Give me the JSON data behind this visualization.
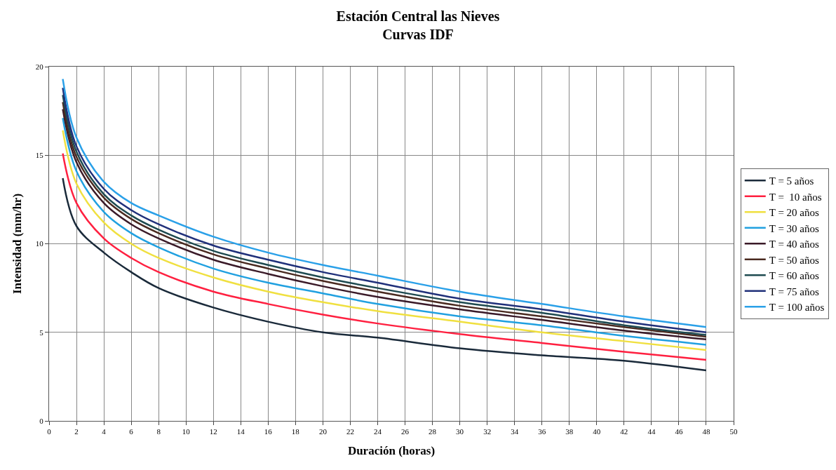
{
  "chart_data": {
    "type": "line",
    "title": "Estación Central las Nieves\nCurvas IDF",
    "xlabel": "Duración (horas)",
    "ylabel": "Intensidad (mm/hr)",
    "x": [
      1,
      2,
      4,
      6,
      8,
      12,
      16,
      20,
      24,
      30,
      36,
      42,
      48
    ],
    "xlim": [
      0,
      50
    ],
    "xticks": [
      0,
      2,
      4,
      6,
      8,
      10,
      12,
      14,
      16,
      18,
      20,
      22,
      24,
      26,
      28,
      30,
      32,
      34,
      36,
      38,
      40,
      42,
      44,
      46,
      48,
      50
    ],
    "ylim": [
      0,
      20
    ],
    "yticks": [
      0,
      5,
      10,
      15,
      20
    ],
    "grid": true,
    "legend": "right",
    "marker": "none",
    "line_style": "solid",
    "series": [
      {
        "name": "T = 5 años",
        "color": "#1a2a3a",
        "values": [
          13.7,
          11.0,
          9.5,
          8.4,
          7.5,
          6.4,
          5.6,
          5.0,
          4.7,
          4.1,
          3.7,
          3.4,
          2.85
        ]
      },
      {
        "name": "T =  10 años",
        "color": "#ff2040",
        "values": [
          15.1,
          12.3,
          10.3,
          9.2,
          8.4,
          7.3,
          6.6,
          6.0,
          5.5,
          4.9,
          4.4,
          3.9,
          3.45
        ]
      },
      {
        "name": "T = 20 años",
        "color": "#f0e040",
        "values": [
          16.4,
          13.4,
          11.2,
          10.0,
          9.2,
          8.1,
          7.3,
          6.7,
          6.2,
          5.6,
          5.0,
          4.5,
          4.0
        ]
      },
      {
        "name": "T = 30 años",
        "color": "#20a0e0",
        "values": [
          17.1,
          14.1,
          11.8,
          10.6,
          9.8,
          8.6,
          7.8,
          7.2,
          6.6,
          5.9,
          5.4,
          4.8,
          4.3
        ]
      },
      {
        "name": "T = 40 años",
        "color": "#3a1a28",
        "values": [
          17.6,
          14.6,
          12.3,
          11.1,
          10.3,
          9.1,
          8.3,
          7.6,
          7.0,
          6.3,
          5.7,
          5.1,
          4.6
        ]
      },
      {
        "name": "T = 50 años",
        "color": "#4a2a20",
        "values": [
          18.0,
          14.9,
          12.6,
          11.4,
          10.6,
          9.4,
          8.6,
          7.9,
          7.3,
          6.5,
          5.9,
          5.3,
          4.75
        ]
      },
      {
        "name": "T = 60 años",
        "color": "#1e4a50",
        "values": [
          18.4,
          15.2,
          12.8,
          11.6,
          10.8,
          9.6,
          8.8,
          8.1,
          7.5,
          6.7,
          6.1,
          5.4,
          4.85
        ]
      },
      {
        "name": "T = 75 años",
        "color": "#20307a",
        "values": [
          18.8,
          15.5,
          13.1,
          11.9,
          11.1,
          9.9,
          9.1,
          8.4,
          7.8,
          6.9,
          6.3,
          5.6,
          5.0
        ]
      },
      {
        "name": "T = 100 años",
        "color": "#2aa0e8",
        "values": [
          19.3,
          16.0,
          13.5,
          12.3,
          11.6,
          10.4,
          9.5,
          8.8,
          8.2,
          7.3,
          6.6,
          5.9,
          5.3
        ]
      }
    ]
  }
}
